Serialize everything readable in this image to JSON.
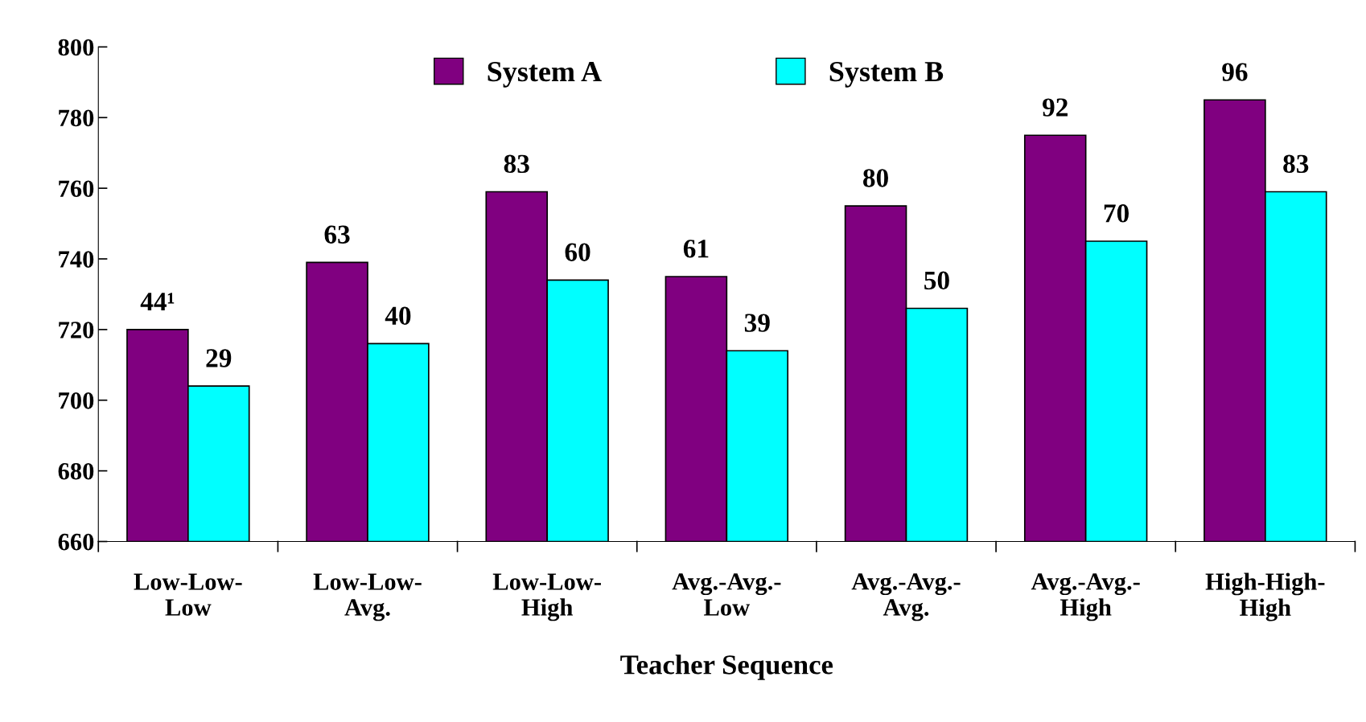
{
  "chart_data": {
    "type": "bar",
    "xlabel": "Teacher Sequence",
    "categories": [
      "Low-Low-\nLow",
      "Low-Low-\nAvg.",
      "Low-Low-\nHigh",
      "Avg.-Avg.-\nLow",
      "Avg.-Avg.-\nAvg.",
      "Avg.-Avg.-\nHigh",
      "High-High-\nHigh"
    ],
    "series": [
      {
        "name": "System A",
        "color": "#800080",
        "values": [
          720,
          739,
          759,
          735,
          755,
          775,
          785
        ]
      },
      {
        "name": "System B",
        "color": "#00ffff",
        "values": [
          704,
          716,
          734,
          714,
          726,
          745,
          759
        ]
      }
    ],
    "annotations": [
      {
        "text": "44¹",
        "x": "Low-Low-\nLow",
        "y": 720
      },
      {
        "text": "63",
        "x": "Low-Low-\nAvg.",
        "y": 739
      },
      {
        "text": "83",
        "x": "Low-Low-\nHigh",
        "y": 759
      },
      {
        "text": "61",
        "x": "Avg.-Avg.-\nLow",
        "y": 735
      },
      {
        "text": "80",
        "x": "Avg.-Avg.-\nAvg.",
        "y": 755
      },
      {
        "text": "92",
        "x": "Avg.-Avg.-\nHigh",
        "y": 775
      },
      {
        "text": "96",
        "x": "High-High-\nHigh",
        "y": 785
      },
      {
        "text": "29",
        "x": "Low-Low-\nLow",
        "y": 704
      },
      {
        "text": "40",
        "x": "Low-Low-\nAvg.",
        "y": 716
      },
      {
        "text": "60",
        "x": "Low-Low-\nHigh",
        "y": 734
      },
      {
        "text": "39",
        "x": "Avg.-Avg.-\nLow",
        "y": 714
      },
      {
        "text": "50",
        "x": "Avg.-Avg.-\nAvg.",
        "y": 726
      },
      {
        "text": "70",
        "x": "Avg.-Avg.-\nHigh",
        "y": 745
      },
      {
        "text": "83",
        "x": "High-High-\nHigh",
        "y": 759
      }
    ],
    "ylim": [
      660,
      800
    ],
    "yticks": [
      660,
      680,
      700,
      720,
      740,
      760,
      780,
      800
    ],
    "grid": false,
    "legend": "top"
  }
}
